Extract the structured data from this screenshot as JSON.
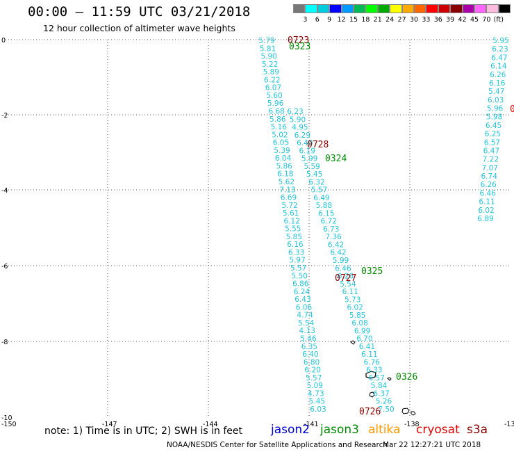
{
  "title": "00:00 – 11:59 UTC 03/21/2018",
  "subtitle": "12 hour collection of altimeter wave heights",
  "colorbar": {
    "colors": [
      "#777777",
      "#00ffff",
      "#00ccdd",
      "#0000ff",
      "#0099ff",
      "#00bb55",
      "#00ff00",
      "#00aa00",
      "#ffff00",
      "#ffaa00",
      "#ff6600",
      "#ff0000",
      "#cc0000",
      "#880000",
      "#aa00aa",
      "#ff66ff",
      "#ffbbdd",
      "#000000"
    ],
    "labels": [
      "3",
      "6",
      "9",
      "12",
      "15",
      "18",
      "21",
      "24",
      "27",
      "30",
      "33",
      "36",
      "39",
      "42",
      "45",
      "70",
      "(ft)"
    ]
  },
  "axes": {
    "x_ticks": [
      "-150",
      "-147",
      "-144",
      "-141",
      "-138",
      "-13"
    ],
    "y_ticks": [
      "0",
      "-2",
      "-4",
      "-6",
      "-8",
      "-10"
    ]
  },
  "tracks": {
    "left_labels": [
      "5.79",
      "5.81",
      "5.90",
      "5.22",
      "5.89",
      "6.22",
      "6.07",
      "5.60",
      "5.96",
      "6.68",
      "5.86",
      "5.16",
      "5.02",
      "6.05",
      "5.39",
      "6.04",
      "5.86",
      "6.18",
      "5.62",
      "7.13",
      "6.69",
      "5.72",
      "5.61",
      "6.12",
      "5.55",
      "5.85",
      "6.16",
      "6.33",
      "5.97",
      "5.57",
      "5.50",
      "6.86",
      "6.24",
      "6.43",
      "6.06",
      "4.74",
      "5.54",
      "4.13",
      "5.46",
      "6.35",
      "6.40",
      "6.80",
      "6.20",
      "5.57",
      "5.09",
      "4.73",
      "5.45",
      "6.03"
    ],
    "middle_labels": [
      "6.23",
      "5.90",
      "4.95",
      "6.29",
      "6.40",
      "6.19",
      "5.99",
      "5.59",
      "5.45",
      "6.32",
      "5.57",
      "6.49",
      "5.88",
      "6.15",
      "6.72",
      "6.73",
      "7.36",
      "6.42",
      "6.42",
      "5.99",
      "6.46",
      "6.26",
      "5.54",
      "6.11",
      "5.73",
      "6.02",
      "5.85",
      "6.08",
      "6.99",
      "6.70",
      "6.41",
      "6.11",
      "6.76",
      "6.33",
      "6.57",
      "5.84",
      "6.37",
      "5.26",
      "7.50"
    ],
    "right_labels": [
      "5.95",
      "6.23",
      "6.47",
      "6.14",
      "6.26",
      "6.16",
      "5.47",
      "6.03",
      "5.96",
      "5.98",
      "6.45",
      "6.25",
      "6.57",
      "6.47",
      "7.22",
      "7.07",
      "6.74",
      "6.26",
      "6.46",
      "6.11",
      "6.02",
      "6.89"
    ],
    "time_labels": [
      {
        "text": "0723",
        "color": "#880000"
      },
      {
        "text": "0323",
        "color": "#008800"
      },
      {
        "text": "0728",
        "color": "#880000"
      },
      {
        "text": "0324",
        "color": "#008800"
      },
      {
        "text": "0325",
        "color": "#008800"
      },
      {
        "text": "0727",
        "color": "#880000"
      },
      {
        "text": "0326",
        "color": "#008800"
      },
      {
        "text": "0726",
        "color": "#880000"
      },
      {
        "text": "0",
        "color": "#ff0000"
      }
    ]
  },
  "footer": {
    "note": "note:  1) Time is in UTC;  2) SWH is in feet",
    "satellites": [
      {
        "name": "jason2",
        "color": "#0000cc"
      },
      {
        "name": "jason3",
        "color": "#008800"
      },
      {
        "name": "altika",
        "color": "#ff9900"
      },
      {
        "name": "cryosat",
        "color": "#dd0000"
      },
      {
        "name": "s3a",
        "color": "#880000"
      }
    ],
    "credit": "NOAA/NESDIS Center for Satellite Applications and Research",
    "timestamp": "Mar 22 12:27:21 UTC 2018"
  }
}
